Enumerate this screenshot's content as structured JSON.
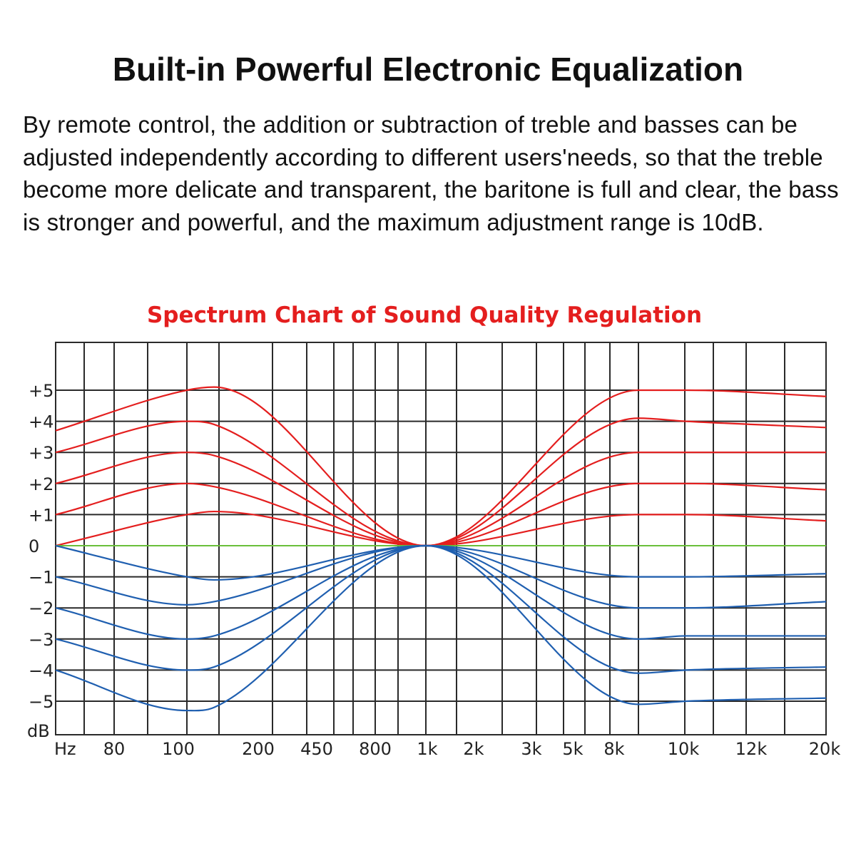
{
  "headline": "Built-in Powerful Electronic Equalization",
  "description": "By remote control, the addition or subtraction of treble and basses can be adjusted independently according to different users'needs, so that the treble become more delicate and transparent, the baritone is full and clear, the bass is stronger and powerful, and the maximum adjustment range is 10dB.",
  "chart_data": {
    "type": "line",
    "title": "Spectrum Chart of Sound Quality Regulation",
    "xlabel": "Hz",
    "ylabel": "dB",
    "grid": true,
    "x_tick_labels": [
      "80",
      "100",
      "200",
      "450",
      "800",
      "1k",
      "2k",
      "3k",
      "5k",
      "8k",
      "10k",
      "12k",
      "20k"
    ],
    "y_tick_labels": [
      "+5",
      "+4",
      "+3",
      "+2",
      "+1",
      "0",
      "−1",
      "−2",
      "−3",
      "−4",
      "−5"
    ],
    "ylim": [
      -5.8,
      6.5
    ],
    "colors": {
      "boost": "#e41e1e",
      "cut": "#1f5fb0",
      "flat": "#6abf3a",
      "grid": "#2a2a2a"
    },
    "x": [
      "Hz",
      "100",
      "130",
      "1k",
      "8k",
      "10k",
      "20k"
    ],
    "series": [
      {
        "values": [
          3.7,
          5.0,
          5.1,
          0,
          5.0,
          5.0,
          4.8
        ]
      },
      {
        "values": [
          3.0,
          4.0,
          3.9,
          0,
          4.1,
          4.0,
          3.8
        ]
      },
      {
        "values": [
          2.0,
          3.0,
          2.9,
          0,
          3.0,
          3.0,
          3.0
        ]
      },
      {
        "values": [
          1.0,
          2.0,
          1.9,
          0,
          2.0,
          2.0,
          1.8
        ]
      },
      {
        "values": [
          0.0,
          1.0,
          1.1,
          0,
          1.0,
          1.0,
          0.8
        ]
      },
      {
        "values": [
          0,
          0,
          0,
          0,
          0,
          0,
          0
        ]
      },
      {
        "values": [
          0.0,
          -1.0,
          -1.1,
          0,
          -1.0,
          -1.0,
          -0.9
        ]
      },
      {
        "values": [
          -1.0,
          -1.9,
          -1.8,
          0,
          -2.0,
          -2.0,
          -1.8
        ]
      },
      {
        "values": [
          -2.0,
          -3.0,
          -2.9,
          0,
          -3.0,
          -2.9,
          -2.9
        ]
      },
      {
        "values": [
          -3.0,
          -4.0,
          -3.9,
          0,
          -4.1,
          -4.0,
          -3.9
        ]
      },
      {
        "values": [
          -4.0,
          -5.3,
          -5.2,
          0,
          -5.1,
          -5.0,
          -4.9
        ]
      }
    ]
  }
}
